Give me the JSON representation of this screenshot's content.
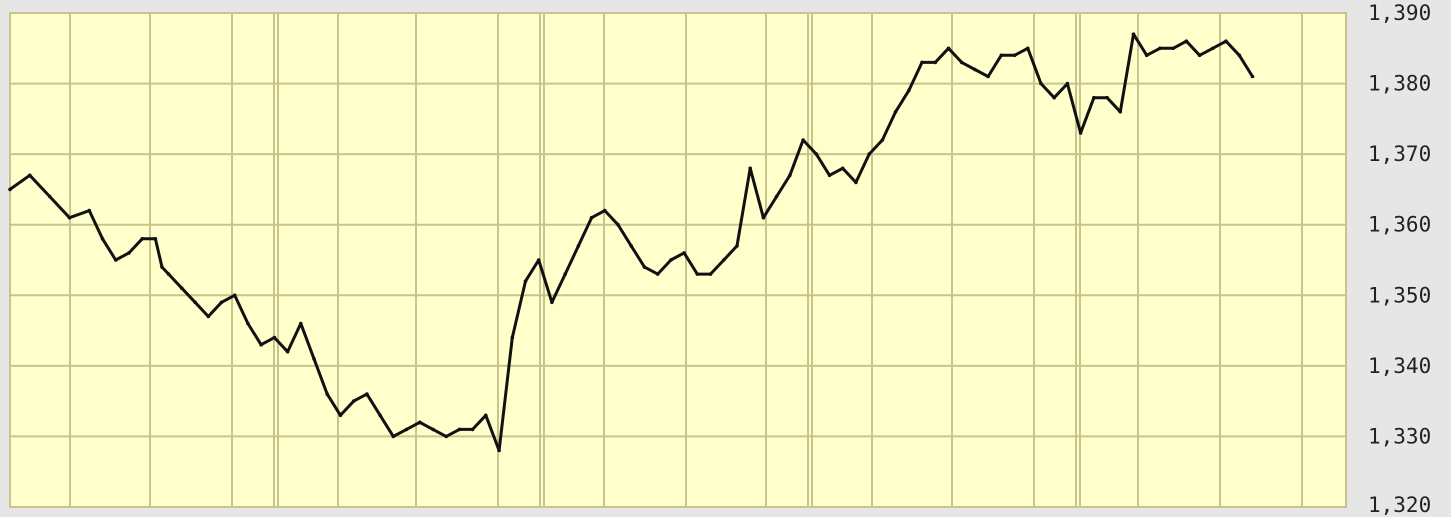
{
  "chart_data": {
    "type": "line",
    "title": "",
    "xlabel": "",
    "ylabel": "",
    "ylim": [
      1320,
      1390
    ],
    "y_ticks": [
      {
        "value": 1390,
        "label": "1,390"
      },
      {
        "value": 1380,
        "label": "1,380"
      },
      {
        "value": 1370,
        "label": "1,370"
      },
      {
        "value": 1360,
        "label": "1,360"
      },
      {
        "value": 1350,
        "label": "1,350"
      },
      {
        "value": 1340,
        "label": "1,340"
      },
      {
        "value": 1330,
        "label": "1,330"
      },
      {
        "value": 1320,
        "label": "1,320"
      }
    ],
    "y_axis_position": "right",
    "grid": true,
    "legend": "none",
    "colors": {
      "plot_background": "#ffffcc",
      "grid": "#c8c48c",
      "line": "#111111",
      "page_background": "#e6e6e6"
    },
    "series": [
      {
        "x": [
          0,
          1.5,
          3,
          4.5,
          6,
          7,
          8,
          9,
          10,
          11,
          11.5,
          12,
          13,
          14,
          15,
          16,
          17,
          18,
          19,
          20,
          21,
          22,
          23,
          24,
          25,
          26,
          27,
          28,
          29,
          30,
          31,
          32,
          33,
          34,
          35,
          36,
          37,
          38,
          39,
          40,
          41,
          42,
          43,
          44,
          45,
          46,
          47,
          48,
          49,
          50,
          51,
          52,
          53,
          54,
          55,
          56,
          57,
          58,
          59,
          60,
          61,
          62,
          63,
          64,
          65,
          66,
          67,
          68,
          69,
          70,
          71,
          72,
          73,
          74,
          75,
          76,
          77,
          78,
          79,
          80,
          81,
          82,
          83,
          84,
          85,
          86,
          87,
          88,
          89,
          90,
          91,
          92,
          93,
          94
        ],
        "y": [
          1365,
          1367,
          1364,
          1361,
          1362,
          1358,
          1355,
          1356,
          1358,
          1358,
          1354,
          1353,
          1351,
          1349,
          1347,
          1349,
          1350,
          1346,
          1343,
          1344,
          1342,
          1346,
          1341,
          1336,
          1333,
          1335,
          1336,
          1333,
          1330,
          1331,
          1332,
          1331,
          1330,
          1331,
          1331,
          1333,
          1328,
          1344,
          1352,
          1355,
          1349,
          1353,
          1357,
          1361,
          1362,
          1360,
          1357,
          1354,
          1353,
          1355,
          1356,
          1353,
          1353,
          1355,
          1357,
          1368,
          1361,
          1364,
          1367,
          1372,
          1370,
          1367,
          1368,
          1366,
          1370,
          1372,
          1376,
          1379,
          1383,
          1383,
          1385,
          1383,
          1382,
          1381,
          1384,
          1384,
          1385,
          1380,
          1378,
          1380,
          1373,
          1378,
          1378,
          1376,
          1387,
          1384,
          1385,
          1385,
          1386,
          1384,
          1385,
          1386,
          1384,
          1381
        ]
      }
    ]
  }
}
